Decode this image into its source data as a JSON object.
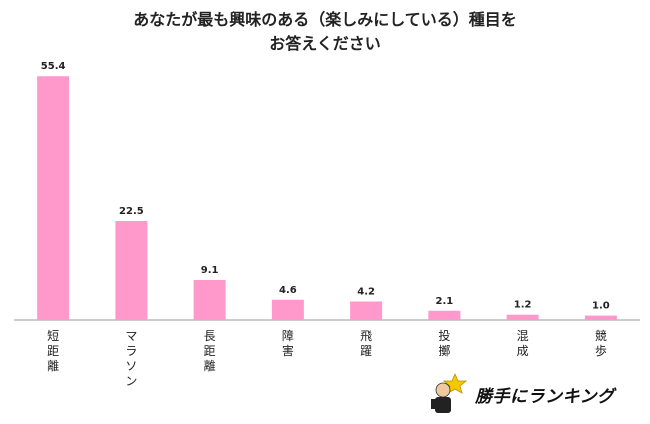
{
  "chart_data": {
    "type": "bar",
    "title_lines": [
      "あなたが最も興味のある（楽しみにしている）種目を",
      "お答えください"
    ],
    "categories": [
      "短距離",
      "マラソン",
      "長距離",
      "障害",
      "飛躍",
      "投擲",
      "混成",
      "競歩"
    ],
    "values": [
      55.4,
      22.5,
      9.1,
      4.6,
      4.2,
      2.1,
      1.2,
      1.0
    ],
    "value_labels": [
      "55.4",
      "22.5",
      "9.1",
      "4.6",
      "4.2",
      "2.1",
      "1.2",
      "1.0"
    ],
    "xlabel": "",
    "ylabel": "",
    "ylim": [
      0,
      60
    ],
    "grid": false,
    "legend": "none",
    "bar_color": "#ff99cc"
  },
  "logo": {
    "text": "勝手にランキング"
  }
}
